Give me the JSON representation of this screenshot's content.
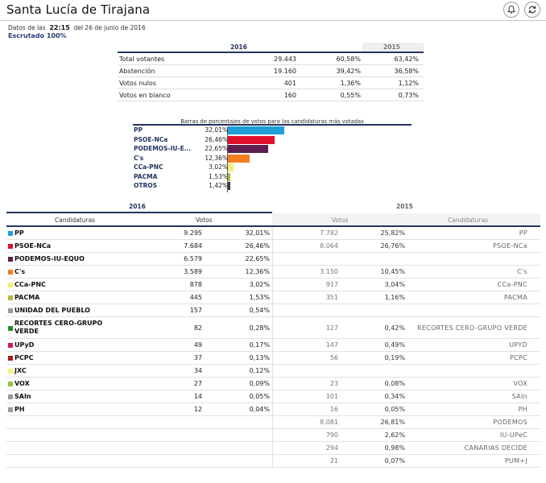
{
  "header": {
    "title": "Santa Lucía de Tirajana",
    "datos_prefix": "Datos de las",
    "time": "22:15",
    "datos_suffix": "del 26 de junio de 2016",
    "escrutado": "Escrutado 100%"
  },
  "summary": {
    "year_current": "2016",
    "year_previous": "2015",
    "rows": [
      {
        "label": "Total votantes",
        "votes": "29.443",
        "pct": "60,58%",
        "pct_prev": "63,42%"
      },
      {
        "label": "Abstención",
        "votes": "19.160",
        "pct": "39,42%",
        "pct_prev": "36,58%"
      },
      {
        "label": "Votos nulos",
        "votes": "401",
        "pct": "1,36%",
        "pct_prev": "1,12%"
      },
      {
        "label": "Votos en blanco",
        "votes": "160",
        "pct": "0,55%",
        "pct_prev": "0,73%"
      }
    ]
  },
  "chart_data": {
    "type": "bar",
    "title": "Barras de porcentajes de votos para las candidaturas más votadas",
    "categories": [
      "PP",
      "PSOE-NCa",
      "PODEMOS-IU-E...",
      "C's",
      "CCa-PNC",
      "PACMA",
      "OTROS"
    ],
    "labels": [
      "32,01%",
      "26,46%",
      "22,65%",
      "12,36%",
      "3,02%",
      "1,53%",
      "1,42%"
    ],
    "values": [
      32.01,
      26.46,
      22.65,
      12.36,
      3.02,
      1.53,
      1.42
    ],
    "colors": [
      "#1f9fd6",
      "#e0102c",
      "#5e1f4e",
      "#f57d20",
      "#f5ef7a",
      "#b6b63a",
      "#3a3a3a"
    ],
    "xlim": [
      0,
      32.01
    ]
  },
  "table": {
    "year_current": "2016",
    "year_previous": "2015",
    "col_candidaturas": "Candidaturas",
    "col_votos": "Votos",
    "col_votos_prev": "Votos",
    "col_candidaturas_prev": "Candidaturas",
    "rows": [
      {
        "name": "PP",
        "color": "#1f9fd6",
        "votes": "9.295",
        "pct": "32,01%",
        "votes_prev": "7.782",
        "pct_prev": "25,82%",
        "name_prev": "PP"
      },
      {
        "name": "PSOE-NCa",
        "color": "#e0102c",
        "votes": "7.684",
        "pct": "26,46%",
        "votes_prev": "8.064",
        "pct_prev": "26,76%",
        "name_prev": "PSOE-NCa"
      },
      {
        "name": "PODEMOS-IU-EQUO",
        "color": "#5e1f4e",
        "votes": "6.579",
        "pct": "22,65%",
        "votes_prev": "",
        "pct_prev": "",
        "name_prev": ""
      },
      {
        "name": "C's",
        "color": "#f57d20",
        "votes": "3.589",
        "pct": "12,36%",
        "votes_prev": "3.150",
        "pct_prev": "10,45%",
        "name_prev": "C's"
      },
      {
        "name": "CCa-PNC",
        "color": "#f5ef7a",
        "votes": "878",
        "pct": "3,02%",
        "votes_prev": "917",
        "pct_prev": "3,04%",
        "name_prev": "CCa-PNC"
      },
      {
        "name": "PACMA",
        "color": "#b6b63a",
        "votes": "445",
        "pct": "1,53%",
        "votes_prev": "351",
        "pct_prev": "1,16%",
        "name_prev": "PACMA"
      },
      {
        "name": "UNIDAD DEL PUEBLO",
        "color": "#9a9a9a",
        "votes": "157",
        "pct": "0,54%",
        "votes_prev": "",
        "pct_prev": "",
        "name_prev": ""
      },
      {
        "name": "RECORTES CERO-GRUPO VERDE",
        "color": "#2a8a2a",
        "votes": "82",
        "pct": "0,28%",
        "votes_prev": "127",
        "pct_prev": "0,42%",
        "name_prev": "RECORTES CERO-GRUPO VERDE"
      },
      {
        "name": "UPyD",
        "color": "#d01a5a",
        "votes": "49",
        "pct": "0,17%",
        "votes_prev": "147",
        "pct_prev": "0,49%",
        "name_prev": "UPYD"
      },
      {
        "name": "PCPC",
        "color": "#b01818",
        "votes": "37",
        "pct": "0,13%",
        "votes_prev": "56",
        "pct_prev": "0,19%",
        "name_prev": "PCPC"
      },
      {
        "name": "JXC",
        "color": "#f5ef7a",
        "votes": "34",
        "pct": "0,12%",
        "votes_prev": "",
        "pct_prev": "",
        "name_prev": ""
      },
      {
        "name": "VOX",
        "color": "#8cc63e",
        "votes": "27",
        "pct": "0,09%",
        "votes_prev": "23",
        "pct_prev": "0,08%",
        "name_prev": "VOX"
      },
      {
        "name": "SAIn",
        "color": "#9a9a9a",
        "votes": "14",
        "pct": "0,05%",
        "votes_prev": "101",
        "pct_prev": "0,34%",
        "name_prev": "SAIn"
      },
      {
        "name": "PH",
        "color": "#9a9a9a",
        "votes": "12",
        "pct": "0,04%",
        "votes_prev": "16",
        "pct_prev": "0,05%",
        "name_prev": "PH"
      },
      {
        "name": "",
        "color": "",
        "votes": "",
        "pct": "",
        "votes_prev": "8.081",
        "pct_prev": "26,81%",
        "name_prev": "PODEMOS"
      },
      {
        "name": "",
        "color": "",
        "votes": "",
        "pct": "",
        "votes_prev": "790",
        "pct_prev": "2,62%",
        "name_prev": "IU-UPeC"
      },
      {
        "name": "",
        "color": "",
        "votes": "",
        "pct": "",
        "votes_prev": "294",
        "pct_prev": "0,98%",
        "name_prev": "CANARIAS DECIDE"
      },
      {
        "name": "",
        "color": "",
        "votes": "",
        "pct": "",
        "votes_prev": "21",
        "pct_prev": "0,07%",
        "name_prev": "PUM+J"
      }
    ]
  },
  "icons": {
    "notify": "bell-icon",
    "refresh": "refresh-icon"
  }
}
